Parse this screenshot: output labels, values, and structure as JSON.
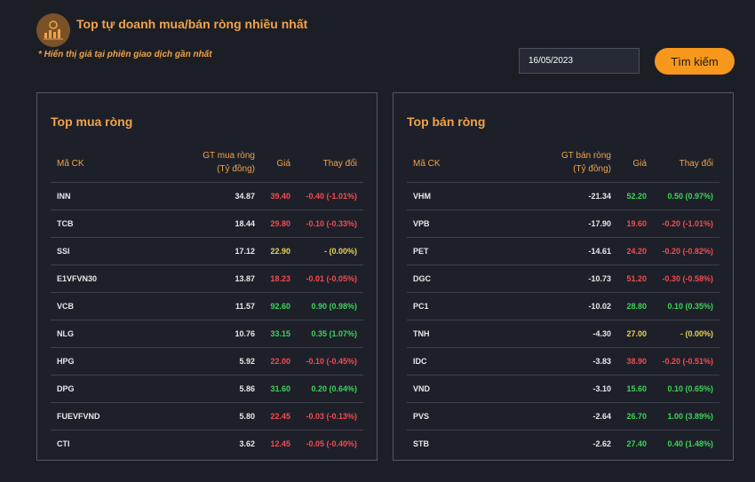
{
  "header": {
    "title": "Top tự doanh mua/bán ròng nhiều nhất",
    "note": "* Hiển thị giá tại phiên giao dịch gần nhất",
    "date_value": "16/05/2023",
    "search_label": "Tìm kiếm"
  },
  "colors": {
    "accent": "#f0a34a",
    "button": "#f7981d",
    "up": "#3cd35a",
    "down": "#f24b50",
    "flat": "#e7d34f"
  },
  "buy": {
    "title": "Top mua ròng",
    "columns": {
      "symbol": "Mã CK",
      "value_line1": "GT mua ròng",
      "value_line2": "(Tỷ đồng)",
      "price": "Giá",
      "change": "Thay đổi"
    },
    "rows": [
      {
        "symbol": "INN",
        "value": "34.87",
        "price": "39.40",
        "change": "-0.40 (-1.01%)",
        "trend": "down"
      },
      {
        "symbol": "TCB",
        "value": "18.44",
        "price": "29.80",
        "change": "-0.10 (-0.33%)",
        "trend": "down"
      },
      {
        "symbol": "SSI",
        "value": "17.12",
        "price": "22.90",
        "change": "- (0.00%)",
        "trend": "flat"
      },
      {
        "symbol": "E1VFVN30",
        "value": "13.87",
        "price": "18.23",
        "change": "-0.01 (-0.05%)",
        "trend": "down"
      },
      {
        "symbol": "VCB",
        "value": "11.57",
        "price": "92.60",
        "change": "0.90 (0.98%)",
        "trend": "up"
      },
      {
        "symbol": "NLG",
        "value": "10.76",
        "price": "33.15",
        "change": "0.35 (1.07%)",
        "trend": "up"
      },
      {
        "symbol": "HPG",
        "value": "5.92",
        "price": "22.00",
        "change": "-0.10 (-0.45%)",
        "trend": "down"
      },
      {
        "symbol": "DPG",
        "value": "5.86",
        "price": "31.60",
        "change": "0.20 (0.64%)",
        "trend": "up"
      },
      {
        "symbol": "FUEVFVND",
        "value": "5.80",
        "price": "22.45",
        "change": "-0.03 (-0.13%)",
        "trend": "down"
      },
      {
        "symbol": "CTI",
        "value": "3.62",
        "price": "12.45",
        "change": "-0.05 (-0.40%)",
        "trend": "down"
      }
    ]
  },
  "sell": {
    "title": "Top bán ròng",
    "columns": {
      "symbol": "Mã CK",
      "value_line1": "GT bán ròng",
      "value_line2": "(Tỷ đồng)",
      "price": "Giá",
      "change": "Thay đổi"
    },
    "rows": [
      {
        "symbol": "VHM",
        "value": "-21.34",
        "price": "52.20",
        "change": "0.50 (0.97%)",
        "trend": "up"
      },
      {
        "symbol": "VPB",
        "value": "-17.90",
        "price": "19.60",
        "change": "-0.20 (-1.01%)",
        "trend": "down"
      },
      {
        "symbol": "PET",
        "value": "-14.61",
        "price": "24.20",
        "change": "-0.20 (-0.82%)",
        "trend": "down"
      },
      {
        "symbol": "DGC",
        "value": "-10.73",
        "price": "51.20",
        "change": "-0.30 (-0.58%)",
        "trend": "down"
      },
      {
        "symbol": "PC1",
        "value": "-10.02",
        "price": "28.80",
        "change": "0.10 (0.35%)",
        "trend": "up"
      },
      {
        "symbol": "TNH",
        "value": "-4.30",
        "price": "27.00",
        "change": "- (0.00%)",
        "trend": "flat"
      },
      {
        "symbol": "IDC",
        "value": "-3.83",
        "price": "38.90",
        "change": "-0.20 (-0.51%)",
        "trend": "down"
      },
      {
        "symbol": "VND",
        "value": "-3.10",
        "price": "15.60",
        "change": "0.10 (0.65%)",
        "trend": "up"
      },
      {
        "symbol": "PVS",
        "value": "-2.64",
        "price": "26.70",
        "change": "1.00 (3.89%)",
        "trend": "up"
      },
      {
        "symbol": "STB",
        "value": "-2.62",
        "price": "27.40",
        "change": "0.40 (1.48%)",
        "trend": "up"
      }
    ]
  }
}
